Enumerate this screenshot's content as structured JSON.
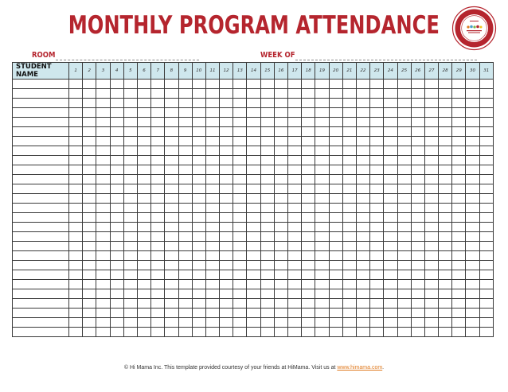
{
  "title": "MONTHLY PROGRAM ATTENDANCE",
  "fields": {
    "room_label": "ROOM",
    "week_label": "WEEK OF"
  },
  "table": {
    "name_header": "STUDENT NAME",
    "days": [
      "1",
      "2",
      "3",
      "4",
      "5",
      "6",
      "7",
      "8",
      "9",
      "10",
      "11",
      "12",
      "13",
      "14",
      "15",
      "16",
      "17",
      "18",
      "19",
      "20",
      "21",
      "22",
      "23",
      "24",
      "25",
      "26",
      "27",
      "28",
      "29",
      "30",
      "31"
    ],
    "empty_rows": 27
  },
  "footer": {
    "text": "© Hi Mama Inc.  This template provided courtesy of your friends at HiMama. Visit us at ",
    "link_text": "www.himama.com",
    "suffix": "."
  },
  "colors": {
    "title": "#b5252e",
    "header_fill": "#cfe7ed",
    "link": "#e07a1f"
  }
}
